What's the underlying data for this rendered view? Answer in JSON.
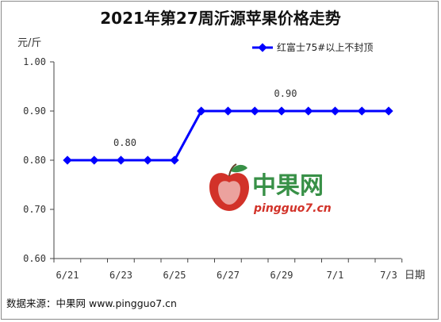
{
  "chart_data": {
    "type": "line",
    "title": "2021年第27周沂源苹果价格走势",
    "unit_label": "元/斤",
    "xlabel": "日期",
    "ylabel": "",
    "ylim": [
      0.6,
      1.0
    ],
    "yticks": [
      "1.00",
      "0.90",
      "0.80",
      "0.70",
      "0.60"
    ],
    "xtick_labels": [
      "6/21",
      "6/23",
      "6/25",
      "6/27",
      "6/29",
      "7/1",
      "7/3"
    ],
    "x": [
      "6/21",
      "6/22",
      "6/23",
      "6/24",
      "6/25",
      "6/26",
      "6/27",
      "6/28",
      "6/29",
      "6/30",
      "7/1",
      "7/2",
      "7/3"
    ],
    "series": [
      {
        "name": "红富士75#以上不封顶",
        "color": "#0000ff",
        "values": [
          0.8,
          0.8,
          0.8,
          0.8,
          0.8,
          0.9,
          0.9,
          0.9,
          0.9,
          0.9,
          0.9,
          0.9,
          0.9
        ]
      }
    ],
    "annotations": [
      "0.80",
      "0.90"
    ],
    "grid": false,
    "legend_position": "top-right"
  },
  "watermark": {
    "text_cn": "中果网",
    "url": "pingguo7.cn",
    "logo_color": "#d0281e",
    "text_color": "#2e8b3e"
  },
  "footer": {
    "source": "数据来源：中果网 www.pingguo7.cn"
  }
}
